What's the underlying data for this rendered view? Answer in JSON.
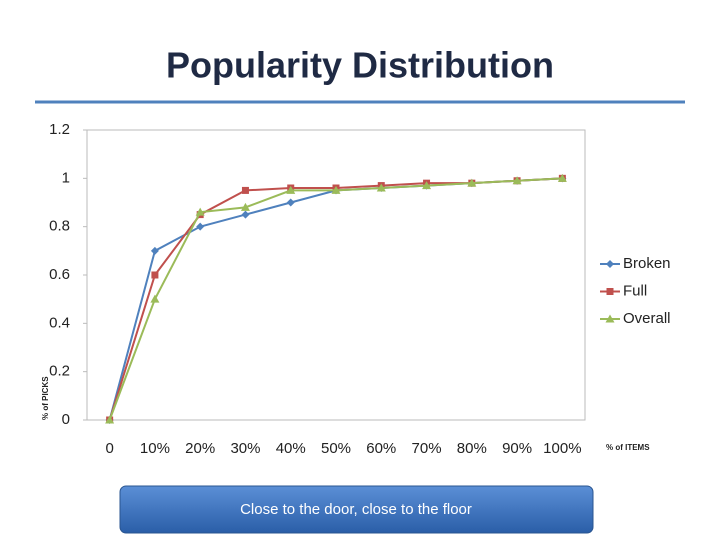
{
  "chart_data": {
    "type": "line",
    "title": "Popularity Distribution",
    "y_label": "% of PICKS",
    "x_label": "% of ITEMS",
    "categories": [
      "0",
      "10%",
      "20%",
      "30%",
      "40%",
      "50%",
      "60%",
      "70%",
      "80%",
      "90%",
      "100%"
    ],
    "series": [
      {
        "name": "Broken",
        "color": "#4f81bd",
        "marker": "diamond",
        "values": [
          0,
          0.7,
          0.8,
          0.85,
          0.9,
          0.95,
          0.96,
          0.97,
          0.98,
          0.99,
          1.0
        ]
      },
      {
        "name": "Full",
        "color": "#c0504d",
        "marker": "square",
        "values": [
          0,
          0.6,
          0.85,
          0.95,
          0.96,
          0.96,
          0.97,
          0.98,
          0.98,
          0.99,
          1.0
        ]
      },
      {
        "name": "Overall",
        "color": "#9bbb59",
        "marker": "triangle",
        "values": [
          0,
          0.5,
          0.86,
          0.88,
          0.95,
          0.95,
          0.96,
          0.97,
          0.98,
          0.99,
          1.0
        ]
      }
    ],
    "ylim": [
      0,
      1.2
    ],
    "yticks": [
      0,
      0.2,
      0.4,
      0.6,
      0.8,
      1,
      1.2
    ],
    "grid": false,
    "legend": "right",
    "annotation": "Close to the door, close to the floor"
  }
}
